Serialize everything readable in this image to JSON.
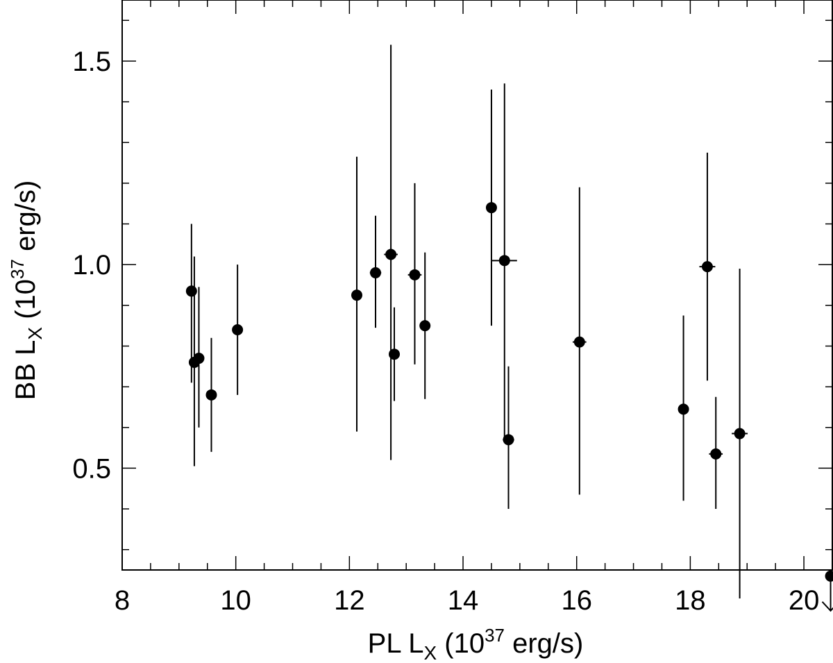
{
  "chart_data": {
    "type": "scatter",
    "xlabel": {
      "prefix": "PL  L",
      "sub": "X",
      "mid": " (10",
      "sup": "37",
      "suffix": " erg/s)"
    },
    "ylabel": {
      "prefix": "BB  L",
      "sub": "X",
      "mid": " (10",
      "sup": "37",
      "suffix": " erg/s)"
    },
    "xlim": [
      8,
      20.5
    ],
    "ylim": [
      0.25,
      1.65
    ],
    "x_ticks": [
      8,
      10,
      12,
      14,
      16,
      18,
      20
    ],
    "x_tick_labels": [
      "8",
      "10",
      "12",
      "14",
      "16",
      "18",
      "20"
    ],
    "y_ticks": [
      0.5,
      1.0,
      1.5
    ],
    "y_tick_labels": [
      "0.5",
      "1.0",
      "1.5"
    ],
    "grid": false,
    "points": [
      {
        "x": 9.22,
        "y": 0.935,
        "ylo": 0.71,
        "yhi": 1.1,
        "xerr": 0.05
      },
      {
        "x": 9.27,
        "y": 0.76,
        "ylo": 0.505,
        "yhi": 1.02,
        "xerr": 0.05
      },
      {
        "x": 9.35,
        "y": 0.77,
        "ylo": 0.6,
        "yhi": 0.945,
        "xerr": 0.05
      },
      {
        "x": 9.57,
        "y": 0.68,
        "ylo": 0.54,
        "yhi": 0.82,
        "xerr": 0.08
      },
      {
        "x": 10.03,
        "y": 0.84,
        "ylo": 0.68,
        "yhi": 1.0,
        "xerr": 0.05
      },
      {
        "x": 12.13,
        "y": 0.925,
        "ylo": 0.59,
        "yhi": 1.265,
        "xerr": 0.08
      },
      {
        "x": 12.46,
        "y": 0.98,
        "ylo": 0.845,
        "yhi": 1.12,
        "xerr": 0.1
      },
      {
        "x": 12.73,
        "y": 1.025,
        "ylo": 0.52,
        "yhi": 1.54,
        "xerr": 0.12
      },
      {
        "x": 12.79,
        "y": 0.78,
        "ylo": 0.665,
        "yhi": 0.895,
        "xerr": 0.08
      },
      {
        "x": 13.15,
        "y": 0.975,
        "ylo": 0.755,
        "yhi": 1.2,
        "xerr": 0.12
      },
      {
        "x": 13.33,
        "y": 0.85,
        "ylo": 0.67,
        "yhi": 1.03,
        "xerr": 0.08
      },
      {
        "x": 14.5,
        "y": 1.14,
        "ylo": 0.85,
        "yhi": 1.43,
        "xerr": 0.06
      },
      {
        "x": 14.73,
        "y": 1.01,
        "ylo": 0.575,
        "yhi": 1.445,
        "xerr": 0.22
      },
      {
        "x": 14.8,
        "y": 0.57,
        "ylo": 0.4,
        "yhi": 0.75,
        "xerr": 0.1
      },
      {
        "x": 16.05,
        "y": 0.81,
        "ylo": 0.435,
        "yhi": 1.19,
        "xerr": 0.12
      },
      {
        "x": 17.88,
        "y": 0.645,
        "ylo": 0.42,
        "yhi": 0.875,
        "xerr": 0.06
      },
      {
        "x": 18.3,
        "y": 0.995,
        "ylo": 0.715,
        "yhi": 1.275,
        "xerr": 0.14
      },
      {
        "x": 18.45,
        "y": 0.535,
        "ylo": 0.4,
        "yhi": 0.675,
        "xerr": 0.12
      },
      {
        "x": 18.87,
        "y": 0.585,
        "ylo": 0.18,
        "yhi": 0.99,
        "xerr": 0.14
      }
    ],
    "upper_limits": [
      {
        "x": 20.47,
        "y": 0.235
      }
    ]
  }
}
